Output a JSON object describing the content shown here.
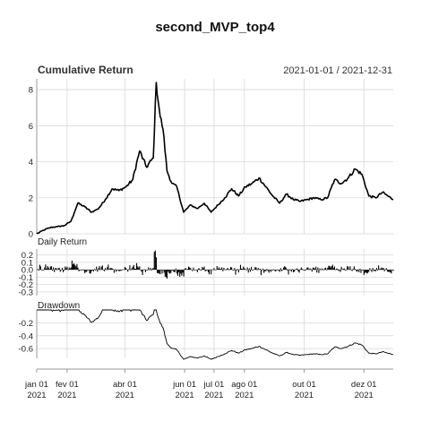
{
  "chart_data": {
    "type": "line",
    "title": "second_MVP_top4",
    "colors": {
      "line": "#000000",
      "grid": "#d9d9d9",
      "axis": "#999999",
      "text": "#222222"
    },
    "x_ticks": [
      {
        "date": "2021-01-01",
        "label1": "jan 01",
        "label2": "2021"
      },
      {
        "date": "2021-02-01",
        "label1": "fev 01",
        "label2": "2021"
      },
      {
        "date": "2021-04-01",
        "label1": "abr 01",
        "label2": "2021"
      },
      {
        "date": "2021-06-01",
        "label1": "jun 01",
        "label2": "2021"
      },
      {
        "date": "2021-07-01",
        "label1": "jul 01",
        "label2": "2021"
      },
      {
        "date": "2021-08-01",
        "label1": "ago 01",
        "label2": "2021"
      },
      {
        "date": "2021-10-01",
        "label1": "out 01",
        "label2": "2021"
      },
      {
        "date": "2021-12-01",
        "label1": "dez 01",
        "label2": "2021"
      }
    ],
    "panels": [
      {
        "id": "cumulative",
        "title": "Cumulative Return",
        "date_range": "2021-01-01 / 2021-12-31",
        "ylim": [
          0,
          8.6
        ],
        "yticks": [
          0,
          2,
          4,
          6,
          8
        ],
        "ytick_labels": [
          "0",
          "2",
          "4",
          "6",
          "8"
        ],
        "series": {
          "dates": [
            "2021-01-01",
            "2021-01-08",
            "2021-01-15",
            "2021-01-22",
            "2021-01-29",
            "2021-02-05",
            "2021-02-12",
            "2021-02-19",
            "2021-02-26",
            "2021-03-05",
            "2021-03-12",
            "2021-03-19",
            "2021-03-26",
            "2021-04-02",
            "2021-04-09",
            "2021-04-16",
            "2021-04-23",
            "2021-04-30",
            "2021-05-03",
            "2021-05-07",
            "2021-05-10",
            "2021-05-14",
            "2021-05-19",
            "2021-05-24",
            "2021-05-31",
            "2021-06-07",
            "2021-06-14",
            "2021-06-21",
            "2021-06-28",
            "2021-07-05",
            "2021-07-12",
            "2021-07-19",
            "2021-07-26",
            "2021-08-02",
            "2021-08-09",
            "2021-08-16",
            "2021-08-23",
            "2021-08-30",
            "2021-09-06",
            "2021-09-13",
            "2021-09-20",
            "2021-09-27",
            "2021-10-04",
            "2021-10-11",
            "2021-10-18",
            "2021-10-25",
            "2021-11-01",
            "2021-11-08",
            "2021-11-15",
            "2021-11-22",
            "2021-11-29",
            "2021-12-06",
            "2021-12-13",
            "2021-12-20",
            "2021-12-31"
          ],
          "values": [
            0.0,
            0.2,
            0.35,
            0.4,
            0.45,
            0.7,
            1.7,
            1.5,
            1.2,
            1.4,
            1.9,
            2.5,
            2.4,
            2.6,
            3.0,
            4.6,
            3.7,
            4.2,
            8.4,
            6.5,
            5.8,
            3.5,
            2.8,
            2.6,
            1.2,
            1.6,
            1.4,
            1.7,
            1.2,
            1.6,
            2.0,
            2.5,
            2.1,
            2.6,
            2.8,
            3.1,
            2.6,
            2.1,
            1.7,
            2.2,
            1.9,
            1.8,
            1.9,
            2.0,
            1.9,
            2.0,
            3.0,
            2.8,
            3.1,
            3.6,
            3.3,
            2.1,
            2.0,
            2.3,
            1.9
          ]
        }
      },
      {
        "id": "daily",
        "title": "Daily Return",
        "ylim": [
          -0.35,
          0.28
        ],
        "yticks": [
          0.2,
          0.1,
          0.0,
          -0.1,
          -0.2,
          -0.3
        ],
        "ytick_labels": [
          "0.2",
          "0.1",
          "0.0",
          "-0.1",
          "-0.2",
          "-0.3"
        ]
      },
      {
        "id": "drawdown",
        "title": "Drawdown",
        "ylim": [
          -0.75,
          0.0
        ],
        "yticks": [
          -0.2,
          -0.4,
          -0.6
        ],
        "ytick_labels": [
          "-0.2",
          "-0.4",
          "-0.6"
        ]
      }
    ],
    "grid": true
  }
}
